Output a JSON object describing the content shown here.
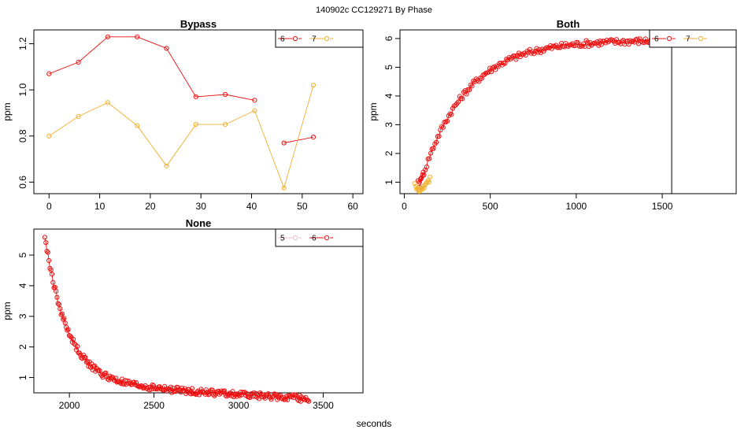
{
  "header": {
    "title": "140902c    CC129271   By Phase"
  },
  "footer": {
    "xlabel": "seconds"
  },
  "chart_data": [
    {
      "type": "line",
      "title": "Bypass",
      "ylabel": "ppm",
      "xlim": [
        -3,
        62
      ],
      "ylim": [
        0.55,
        1.26
      ],
      "xticks": [
        0,
        10,
        20,
        30,
        40,
        50,
        60
      ],
      "xtick_labels": [
        "0",
        "10",
        "20",
        "30",
        "40",
        "50",
        "60"
      ],
      "yticks": [
        0.6,
        0.8,
        1.0,
        1.2
      ],
      "ytick_labels": [
        "0.6",
        "0.8",
        "1.0",
        "1.2"
      ],
      "legend": {
        "position": "top-right",
        "entries": [
          "6",
          "7"
        ]
      },
      "series": [
        {
          "name": "6",
          "color": "#ee1111",
          "marker": "circle",
          "connected": true,
          "segments": [
            [
              [
                0,
                1.07
              ],
              [
                5.8,
                1.12
              ],
              [
                11.6,
                1.23
              ],
              [
                17.4,
                1.23
              ],
              [
                23.2,
                1.18
              ],
              [
                29,
                0.97
              ],
              [
                34.8,
                0.98
              ],
              [
                40.6,
                0.955
              ]
            ],
            [
              [
                46.4,
                0.77
              ],
              [
                52.2,
                0.795
              ]
            ]
          ]
        },
        {
          "name": "7",
          "color": "#f0b030",
          "marker": "circle",
          "connected": true,
          "segments": [
            [
              [
                0,
                0.8
              ],
              [
                5.8,
                0.885
              ],
              [
                11.6,
                0.945
              ],
              [
                17.4,
                0.845
              ],
              [
                23.2,
                0.67
              ],
              [
                29,
                0.85
              ],
              [
                34.8,
                0.85
              ],
              [
                40.6,
                0.91
              ],
              [
                46.4,
                0.575
              ],
              [
                52.2,
                1.02
              ]
            ]
          ]
        }
      ]
    },
    {
      "type": "scatter",
      "title": "Both",
      "ylabel": "ppm",
      "xlim": [
        -25,
        1930
      ],
      "ylim": [
        0.6,
        6.3
      ],
      "xticks": [
        0,
        500,
        1000,
        1500
      ],
      "xtick_labels": [
        "0",
        "500",
        "1000",
        "1500"
      ],
      "yticks": [
        1,
        2,
        3,
        4,
        5,
        6
      ],
      "ytick_labels": [
        "1",
        "2",
        "3",
        "4",
        "5",
        "6"
      ],
      "legend": {
        "position": "top-right",
        "entries": [
          "6",
          "7"
        ]
      },
      "vline": 1555,
      "series": [
        {
          "name": "6",
          "color": "#ee1111",
          "marker": "circle",
          "connected": true,
          "model": {
            "kind": "saturating",
            "x_start": 90,
            "x_end": 1900,
            "step": 8,
            "base": 0.9,
            "top": 5.95,
            "x0": 90,
            "tau": 260,
            "noise": 0.11
          },
          "lead_points": [
            [
              80,
              1.05
            ],
            [
              88,
              1.0
            ],
            [
              95,
              1.1
            ],
            [
              100,
              1.15
            ],
            [
              110,
              1.35
            ]
          ]
        },
        {
          "name": "7",
          "color": "#f0b030",
          "marker": "circle",
          "connected": true,
          "points": [
            [
              60,
              0.95
            ],
            [
              68,
              0.85
            ],
            [
              72,
              0.75
            ],
            [
              78,
              0.78
            ],
            [
              83,
              0.7
            ],
            [
              88,
              0.68
            ],
            [
              93,
              0.72
            ],
            [
              98,
              0.8
            ],
            [
              104,
              0.75
            ],
            [
              110,
              0.85
            ],
            [
              115,
              0.8
            ],
            [
              120,
              0.9
            ],
            [
              126,
              0.95
            ],
            [
              132,
              1.0
            ],
            [
              138,
              1.05
            ],
            [
              144,
              1.0
            ],
            [
              150,
              1.18
            ]
          ]
        }
      ]
    },
    {
      "type": "scatter",
      "title": "None",
      "ylabel": "ppm",
      "xlim": [
        1790,
        3735
      ],
      "ylim": [
        0.5,
        5.85
      ],
      "xticks": [
        2000,
        2500,
        3000,
        3500
      ],
      "xtick_labels": [
        "2000",
        "2500",
        "3000",
        "3500"
      ],
      "yticks": [
        1,
        2,
        3,
        4,
        5
      ],
      "ytick_labels": [
        "1",
        "2",
        "3",
        "4",
        "5"
      ],
      "legend": {
        "position": "top-right",
        "entries": [
          "5",
          "6"
        ]
      },
      "series": [
        {
          "name": "5",
          "color": "#f4b8c8",
          "marker": "circle",
          "connected": true,
          "points": []
        },
        {
          "name": "6",
          "color": "#ee1111",
          "marker": "circle",
          "connected": true,
          "model": {
            "kind": "decay",
            "x_start": 1855,
            "x_end": 3415,
            "step": 6,
            "base": 0.85,
            "amp": 4.75,
            "x0": 1855,
            "tau": 135,
            "slope": -0.00035,
            "noise": 0.1
          }
        }
      ]
    }
  ]
}
